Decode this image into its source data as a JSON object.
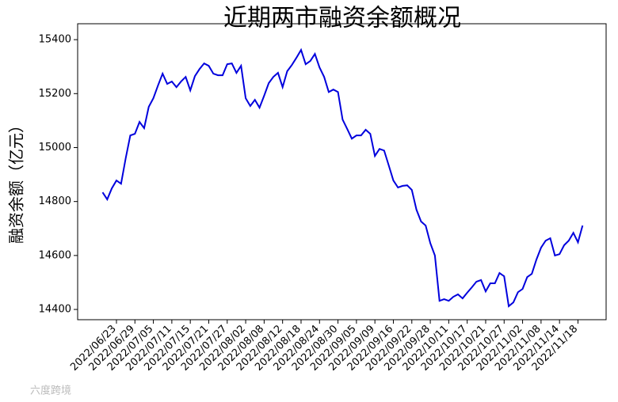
{
  "chart_data": {
    "type": "line",
    "title": "近期两市融资余额概况",
    "ylabel": "融资余额（亿元）",
    "watermark": "六度跨境",
    "categories": [
      null,
      null,
      null,
      "2022/06/23",
      null,
      null,
      null,
      "2022/06/29",
      null,
      null,
      null,
      "2022/07/05",
      null,
      null,
      null,
      "2022/07/11",
      null,
      null,
      null,
      "2022/07/15",
      null,
      null,
      null,
      "2022/07/21",
      null,
      null,
      null,
      "2022/07/27",
      null,
      null,
      null,
      "2022/08/02",
      null,
      null,
      null,
      "2022/08/08",
      null,
      null,
      null,
      "2022/08/12",
      null,
      null,
      null,
      "2022/08/18",
      null,
      null,
      null,
      "2022/08/24",
      null,
      null,
      null,
      "2022/08/30",
      null,
      null,
      null,
      "2022/09/05",
      null,
      null,
      null,
      "2022/09/09",
      null,
      null,
      null,
      "2022/09/16",
      null,
      null,
      null,
      "2022/09/22",
      null,
      null,
      null,
      "2022/09/28",
      null,
      null,
      null,
      "2022/10/11",
      null,
      null,
      null,
      "2022/10/17",
      null,
      null,
      null,
      "2022/10/21",
      null,
      null,
      null,
      "2022/10/27",
      null,
      null,
      null,
      "2022/11/02",
      null,
      null,
      null,
      "2022/11/08",
      null,
      null,
      null,
      "2022/11/14",
      null,
      null,
      null,
      "2022/11/18",
      null
    ],
    "series": [
      {
        "color": "#0000dd",
        "values": [
          14834,
          14808,
          14849,
          14878,
          14866,
          14960,
          15045,
          15051,
          15095,
          15072,
          15151,
          15183,
          15230,
          15274,
          15236,
          15245,
          15224,
          15245,
          15262,
          15212,
          15265,
          15291,
          15312,
          15303,
          15274,
          15268,
          15268,
          15309,
          15312,
          15277,
          15303,
          15183,
          15154,
          15177,
          15148,
          15192,
          15239,
          15262,
          15277,
          15224,
          15283,
          15306,
          15333,
          15362,
          15309,
          15321,
          15347,
          15297,
          15262,
          15206,
          15215,
          15206,
          15104,
          15069,
          15033,
          15045,
          15045,
          15066,
          15051,
          14969,
          14995,
          14989,
          14934,
          14878,
          14852,
          14858,
          14860,
          14843,
          14770,
          14726,
          14711,
          14646,
          14600,
          14432,
          14438,
          14432,
          14447,
          14456,
          14441,
          14462,
          14482,
          14503,
          14509,
          14467,
          14497,
          14497,
          14535,
          14523,
          14412,
          14426,
          14464,
          14476,
          14520,
          14532,
          14585,
          14629,
          14655,
          14664,
          14600,
          14605,
          14638,
          14655,
          14684,
          14649,
          14711
        ]
      }
    ],
    "ylim": [
      14362,
      15459
    ],
    "yticks": [
      14400,
      14600,
      14800,
      15000,
      15200,
      15400
    ]
  }
}
